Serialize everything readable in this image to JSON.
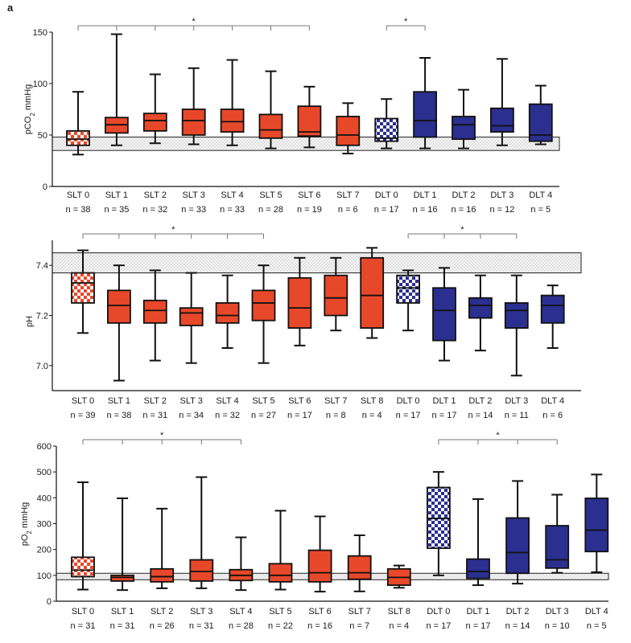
{
  "figure": {
    "panel_label": "a"
  },
  "colors": {
    "slt_fill": "#e8482a",
    "dlt_fill": "#2b2f8f",
    "whisker": "#111111",
    "band_fill": "#ececec"
  },
  "chart_data": [
    {
      "type": "boxplot",
      "id": "pco2",
      "ylabel_main": "pCO",
      "ylabel_sub": "2",
      "ylabel_unit": " mmHg",
      "ylim": [
        0,
        150
      ],
      "yticks": [
        0,
        50,
        100,
        150
      ],
      "ytick_labels": [
        "0",
        "50",
        "100",
        "150"
      ],
      "reference_band": [
        35,
        48
      ],
      "significance": [
        {
          "from": 0,
          "to": 6,
          "marks": [
            1,
            2,
            3,
            4,
            5
          ],
          "label": "*"
        },
        {
          "from": 8,
          "to": 9,
          "marks": [],
          "label": "*"
        }
      ],
      "groups": [
        {
          "name": "SLT 0",
          "n": "n = 38",
          "group": "SLT",
          "pattern": "checker",
          "min": 31,
          "q1": 40,
          "median": 46,
          "q3": 54,
          "max": 92
        },
        {
          "name": "SLT 1",
          "n": "n = 35",
          "group": "SLT",
          "pattern": "solid",
          "min": 40,
          "q1": 52,
          "median": 60,
          "q3": 67,
          "max": 148
        },
        {
          "name": "SLT 2",
          "n": "n = 32",
          "group": "SLT",
          "pattern": "solid",
          "min": 42,
          "q1": 54,
          "median": 64,
          "q3": 71,
          "max": 109
        },
        {
          "name": "SLT 3",
          "n": "n = 33",
          "group": "SLT",
          "pattern": "solid",
          "min": 41,
          "q1": 50,
          "median": 64,
          "q3": 75,
          "max": 115
        },
        {
          "name": "SLT 4",
          "n": "n = 33",
          "group": "SLT",
          "pattern": "solid",
          "min": 40,
          "q1": 53,
          "median": 63,
          "q3": 75,
          "max": 123
        },
        {
          "name": "SLT 5",
          "n": "n = 28",
          "group": "SLT",
          "pattern": "solid",
          "min": 37,
          "q1": 47,
          "median": 55,
          "q3": 70,
          "max": 112
        },
        {
          "name": "SLT 6",
          "n": "n = 19",
          "group": "SLT",
          "pattern": "solid",
          "min": 38,
          "q1": 49,
          "median": 53,
          "q3": 78,
          "max": 97
        },
        {
          "name": "SLT 7",
          "n": "n = 6",
          "group": "SLT",
          "pattern": "solid",
          "min": 32,
          "q1": 40,
          "median": 50,
          "q3": 68,
          "max": 81
        },
        {
          "name": "DLT 0",
          "n": "n = 17",
          "group": "DLT",
          "pattern": "checker",
          "min": 37,
          "q1": 44,
          "median": 47,
          "q3": 66,
          "max": 85
        },
        {
          "name": "DLT 1",
          "n": "n = 16",
          "group": "DLT",
          "pattern": "solid",
          "min": 37,
          "q1": 48,
          "median": 64,
          "q3": 92,
          "max": 125
        },
        {
          "name": "DLT 2",
          "n": "n = 16",
          "group": "DLT",
          "pattern": "solid",
          "min": 37,
          "q1": 46,
          "median": 60,
          "q3": 68,
          "max": 94
        },
        {
          "name": "DLT 3",
          "n": "n = 12",
          "group": "DLT",
          "pattern": "solid",
          "min": 40,
          "q1": 53,
          "median": 59,
          "q3": 76,
          "max": 124
        },
        {
          "name": "DLT 4",
          "n": "n = 5",
          "group": "DLT",
          "pattern": "solid",
          "min": 41,
          "q1": 44,
          "median": 50,
          "q3": 80,
          "max": 98
        }
      ]
    },
    {
      "type": "boxplot",
      "id": "ph",
      "ylabel_main": "pH",
      "ylabel_sub": "",
      "ylabel_unit": "",
      "ylim": [
        6.9,
        7.5
      ],
      "yticks": [
        7.0,
        7.2,
        7.4
      ],
      "ytick_labels": [
        "7.0",
        "7.2",
        "7.4"
      ],
      "reference_band": [
        7.37,
        7.45
      ],
      "significance": [
        {
          "from": 0,
          "to": 5,
          "marks": [
            1,
            2,
            3,
            4
          ],
          "label": "*"
        },
        {
          "from": 9,
          "to": 12,
          "marks": [
            10,
            11
          ],
          "label": "*"
        }
      ],
      "groups": [
        {
          "name": "SLT 0",
          "n": "n = 39",
          "group": "SLT",
          "pattern": "checker",
          "min": 7.13,
          "q1": 7.25,
          "median": 7.33,
          "q3": 7.37,
          "max": 7.46
        },
        {
          "name": "SLT 1",
          "n": "n = 38",
          "group": "SLT",
          "pattern": "solid",
          "min": 6.94,
          "q1": 7.17,
          "median": 7.24,
          "q3": 7.3,
          "max": 7.4
        },
        {
          "name": "SLT 2",
          "n": "n = 31",
          "group": "SLT",
          "pattern": "solid",
          "min": 7.02,
          "q1": 7.17,
          "median": 7.22,
          "q3": 7.26,
          "max": 7.38
        },
        {
          "name": "SLT 3",
          "n": "n = 34",
          "group": "SLT",
          "pattern": "solid",
          "min": 7.01,
          "q1": 7.16,
          "median": 7.21,
          "q3": 7.23,
          "max": 7.37
        },
        {
          "name": "SLT 4",
          "n": "n = 32",
          "group": "SLT",
          "pattern": "solid",
          "min": 7.07,
          "q1": 7.17,
          "median": 7.2,
          "q3": 7.25,
          "max": 7.36
        },
        {
          "name": "SLT 5",
          "n": "n = 27",
          "group": "SLT",
          "pattern": "solid",
          "min": 7.01,
          "q1": 7.18,
          "median": 7.25,
          "q3": 7.3,
          "max": 7.4
        },
        {
          "name": "SLT 6",
          "n": "n = 17",
          "group": "SLT",
          "pattern": "solid",
          "min": 7.08,
          "q1": 7.15,
          "median": 7.23,
          "q3": 7.35,
          "max": 7.43
        },
        {
          "name": "SLT 7",
          "n": "n = 8",
          "group": "SLT",
          "pattern": "solid",
          "min": 7.14,
          "q1": 7.2,
          "median": 7.27,
          "q3": 7.36,
          "max": 7.43
        },
        {
          "name": "SLT 8",
          "n": "n = 4",
          "group": "SLT",
          "pattern": "solid",
          "min": 7.11,
          "q1": 7.15,
          "median": 7.28,
          "q3": 7.43,
          "max": 7.47
        },
        {
          "name": "DLT 0",
          "n": "n = 17",
          "group": "DLT",
          "pattern": "checker",
          "min": 7.14,
          "q1": 7.25,
          "median": 7.31,
          "q3": 7.36,
          "max": 7.38
        },
        {
          "name": "DLT 1",
          "n": "n = 17",
          "group": "DLT",
          "pattern": "solid",
          "min": 7.02,
          "q1": 7.1,
          "median": 7.22,
          "q3": 7.31,
          "max": 7.39
        },
        {
          "name": "DLT 2",
          "n": "n = 14",
          "group": "DLT",
          "pattern": "solid",
          "min": 7.06,
          "q1": 7.19,
          "median": 7.24,
          "q3": 7.27,
          "max": 7.36
        },
        {
          "name": "DLT 3",
          "n": "n = 11",
          "group": "DLT",
          "pattern": "solid",
          "min": 6.96,
          "q1": 7.15,
          "median": 7.22,
          "q3": 7.25,
          "max": 7.36
        },
        {
          "name": "DLT 4",
          "n": "n = 6",
          "group": "DLT",
          "pattern": "solid",
          "min": 7.07,
          "q1": 7.17,
          "median": 7.24,
          "q3": 7.28,
          "max": 7.32
        }
      ]
    },
    {
      "type": "boxplot",
      "id": "po2",
      "ylabel_main": "pO",
      "ylabel_sub": "2",
      "ylabel_unit": " mmHg",
      "ylim": [
        0,
        600
      ],
      "yticks": [
        0,
        100,
        200,
        300,
        400,
        500,
        600
      ],
      "ytick_labels": [
        "0",
        "100",
        "200",
        "300",
        "400",
        "500",
        "600"
      ],
      "reference_band": [
        83,
        108
      ],
      "significance": [
        {
          "from": 0,
          "to": 4,
          "marks": [
            1,
            2,
            3
          ],
          "label": "*"
        },
        {
          "from": 9,
          "to": 12,
          "marks": [
            10,
            11
          ],
          "label": "*"
        }
      ],
      "groups": [
        {
          "name": "SLT 0",
          "n": "n = 31",
          "group": "SLT",
          "pattern": "checker",
          "min": 45,
          "q1": 95,
          "median": 120,
          "q3": 170,
          "max": 460
        },
        {
          "name": "SLT 1",
          "n": "n = 31",
          "group": "SLT",
          "pattern": "solid",
          "min": 43,
          "q1": 78,
          "median": 92,
          "q3": 100,
          "max": 398
        },
        {
          "name": "SLT 2",
          "n": "n = 26",
          "group": "SLT",
          "pattern": "solid",
          "min": 50,
          "q1": 75,
          "median": 95,
          "q3": 125,
          "max": 358
        },
        {
          "name": "SLT 3",
          "n": "n = 31",
          "group": "SLT",
          "pattern": "solid",
          "min": 50,
          "q1": 78,
          "median": 115,
          "q3": 160,
          "max": 480
        },
        {
          "name": "SLT 4",
          "n": "n = 28",
          "group": "SLT",
          "pattern": "solid",
          "min": 43,
          "q1": 80,
          "median": 100,
          "q3": 122,
          "max": 247
        },
        {
          "name": "SLT 5",
          "n": "n = 22",
          "group": "SLT",
          "pattern": "solid",
          "min": 45,
          "q1": 75,
          "median": 100,
          "q3": 145,
          "max": 350
        },
        {
          "name": "SLT 6",
          "n": "n = 16",
          "group": "SLT",
          "pattern": "solid",
          "min": 37,
          "q1": 75,
          "median": 110,
          "q3": 197,
          "max": 328
        },
        {
          "name": "SLT 7",
          "n": "n = 7",
          "group": "SLT",
          "pattern": "solid",
          "min": 38,
          "q1": 85,
          "median": 110,
          "q3": 175,
          "max": 255
        },
        {
          "name": "SLT 8",
          "n": "n = 4",
          "group": "SLT",
          "pattern": "solid",
          "min": 52,
          "q1": 62,
          "median": 92,
          "q3": 125,
          "max": 138
        },
        {
          "name": "DLT 0",
          "n": "n = 17",
          "group": "DLT",
          "pattern": "checker",
          "min": 100,
          "q1": 205,
          "median": 320,
          "q3": 440,
          "max": 500
        },
        {
          "name": "DLT 1",
          "n": "n = 17",
          "group": "DLT",
          "pattern": "solid",
          "min": 62,
          "q1": 88,
          "median": 115,
          "q3": 163,
          "max": 395
        },
        {
          "name": "DLT 2",
          "n": "n = 14",
          "group": "DLT",
          "pattern": "solid",
          "min": 68,
          "q1": 108,
          "median": 188,
          "q3": 322,
          "max": 465
        },
        {
          "name": "DLT 3",
          "n": "n = 10",
          "group": "DLT",
          "pattern": "solid",
          "min": 110,
          "q1": 128,
          "median": 160,
          "q3": 292,
          "max": 412
        },
        {
          "name": "DLT 4",
          "n": "n = 5",
          "group": "DLT",
          "pattern": "solid",
          "min": 112,
          "q1": 192,
          "median": 275,
          "q3": 398,
          "max": 490
        }
      ]
    }
  ]
}
